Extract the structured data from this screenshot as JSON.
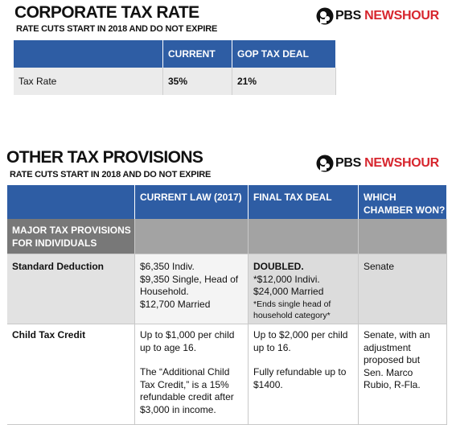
{
  "sections": [
    {
      "title": "CORPORATE TAX RATE",
      "subtitle": "RATE CUTS START IN 2018 AND DO NOT EXPIRE",
      "logo": {
        "brand": "PBS",
        "show": "NEWSHOUR"
      },
      "table": {
        "header": [
          "CURRENT",
          "GOP TAX DEAL"
        ],
        "rows": [
          [
            "Tax Rate",
            "35%",
            "21%"
          ]
        ]
      }
    },
    {
      "title": "OTHER TAX PROVISIONS",
      "subtitle": "RATE CUTS START IN 2018 AND DO NOT EXPIRE",
      "logo": {
        "brand": "PBS",
        "show": "NEWSHOUR"
      },
      "table": {
        "header": [
          [
            "CURRENT LAW (2017)"
          ],
          [
            "FINAL TAX DEAL"
          ],
          [
            "WHICH",
            "CHAMBER WON?"
          ]
        ],
        "rows": [
          {
            "cells": [
              [
                "MAJOR TAX PROVISIONS",
                "FOR INDIVIDUALS"
              ]
            ]
          },
          {
            "cells": [
              [
                "Standard Deduction"
              ],
              [
                "$6,350 Indiv.",
                "$9,350 Single, Head of",
                "Household.",
                "$12,700 Married"
              ],
              [
                "DOUBLED.",
                "*$12,000 Indivi.",
                "$24,000 Married",
                "*Ends single head of",
                "household category*"
              ],
              [
                "Senate"
              ]
            ]
          },
          {
            "cells": [
              [
                "Child Tax Credit"
              ],
              [
                "Up to $1,000 per child",
                "up to age 16.",
                "The “Additional Child",
                "Tax Credit,” is a 15%",
                "refundable credit after",
                "$3,000 in income."
              ],
              [
                "Up to $2,000 per child",
                "up to 16.",
                "Fully refundable up to",
                "$1400."
              ],
              [
                "Senate, with an",
                "adjustment",
                "proposed but",
                "Sen. Marco",
                "Rubio, R-Fla."
              ]
            ]
          }
        ]
      }
    }
  ]
}
